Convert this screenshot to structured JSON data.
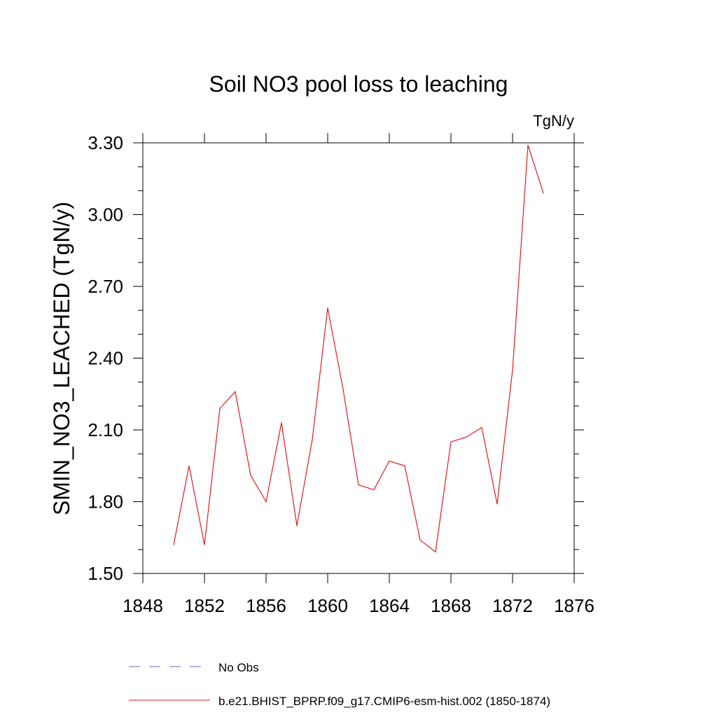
{
  "chart_data": {
    "type": "line",
    "title": "Soil NO3 pool loss to leaching",
    "units_label": "TgN/y",
    "xlabel": "",
    "ylabel": "SMIN_NO3_LEACHED  (TgN/y)",
    "xlim": [
      1848,
      1876
    ],
    "ylim": [
      1.5,
      3.3
    ],
    "x_ticks": [
      "1848",
      "1852",
      "1856",
      "1860",
      "1864",
      "1868",
      "1872",
      "1876"
    ],
    "y_ticks": [
      "1.50",
      "1.80",
      "2.10",
      "2.40",
      "2.70",
      "3.00",
      "3.30"
    ],
    "grid": false,
    "legend_position": "bottom",
    "series": [
      {
        "name": "b.e21.BHIST_BPRP.f09_g17.CMIP6-esm-hist.002 (1850-1874)",
        "color": "#e41a1c",
        "style": "solid",
        "x": [
          1850,
          1851,
          1852,
          1853,
          1854,
          1855,
          1856,
          1857,
          1858,
          1859,
          1860,
          1861,
          1862,
          1863,
          1864,
          1865,
          1866,
          1867,
          1868,
          1869,
          1870,
          1871,
          1872,
          1873,
          1874
        ],
        "values": [
          1.62,
          1.95,
          1.62,
          2.19,
          2.26,
          1.91,
          1.8,
          2.13,
          1.7,
          2.06,
          2.61,
          2.27,
          1.87,
          1.85,
          1.97,
          1.95,
          1.64,
          1.59,
          2.05,
          2.07,
          2.11,
          1.79,
          2.35,
          3.29,
          3.09
        ]
      }
    ],
    "legend": [
      {
        "label": "No Obs",
        "color": "#6b6bb5",
        "style": "dashed"
      },
      {
        "label": "b.e21.BHIST_BPRP.f09_g17.CMIP6-esm-hist.002 (1850-1874)",
        "color": "#e41a1c",
        "style": "solid"
      }
    ]
  }
}
